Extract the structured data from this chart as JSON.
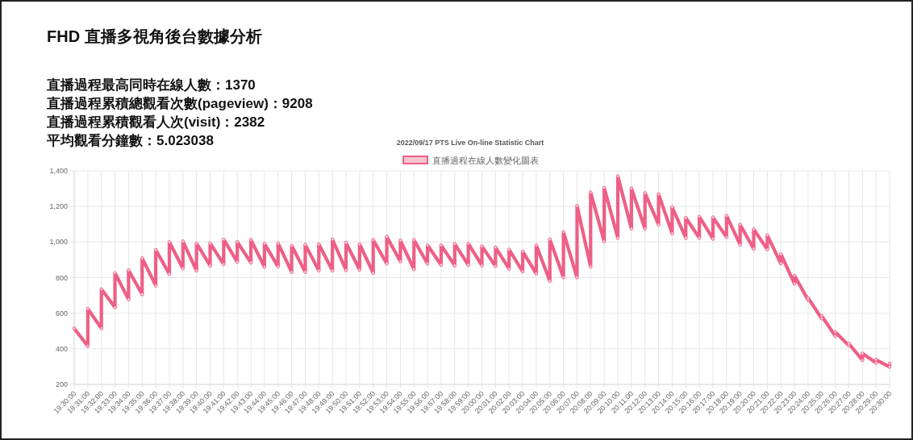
{
  "chart_data": {
    "type": "line",
    "title": "FHD 直播多視角後台數據分析",
    "subtitle": "2022/09/17 PTS Live On-line Statistic Chart",
    "annotations": [
      "直播過程最高同時在線人數：1370",
      "直播過程累積總觀看次數(pageview)：9208",
      "直播過程累積觀看人次(visit)：2382",
      "平均觀看分鐘數：5.023038"
    ],
    "legend": "top",
    "grid": true,
    "marker": "circle",
    "line_style": "solid",
    "xlim": [
      "2022-09-17T19:30",
      "2022-09-17T20:30"
    ],
    "xticks": [
      {
        "value": "2022-09-17T19:30",
        "label": "19:30:00"
      },
      {
        "value": "2022-09-17T19:31",
        "label": "19:31:00"
      },
      {
        "value": "2022-09-17T19:32",
        "label": "19:32:00"
      },
      {
        "value": "2022-09-17T19:33",
        "label": "19:33:00"
      },
      {
        "value": "2022-09-17T19:34",
        "label": "19:34:00"
      },
      {
        "value": "2022-09-17T19:35",
        "label": "19:35:00"
      },
      {
        "value": "2022-09-17T19:36",
        "label": "19:36:00"
      },
      {
        "value": "2022-09-17T19:37",
        "label": "19:37:00"
      },
      {
        "value": "2022-09-17T19:38",
        "label": "19:38:00"
      },
      {
        "value": "2022-09-17T19:39",
        "label": "19:39:00"
      },
      {
        "value": "2022-09-17T19:40",
        "label": "19:40:00"
      },
      {
        "value": "2022-09-17T19:41",
        "label": "19:41:00"
      },
      {
        "value": "2022-09-17T19:42",
        "label": "19:42:00"
      },
      {
        "value": "2022-09-17T19:43",
        "label": "19:43:00"
      },
      {
        "value": "2022-09-17T19:44",
        "label": "19:44:00"
      },
      {
        "value": "2022-09-17T19:45",
        "label": "19:45:00"
      },
      {
        "value": "2022-09-17T19:46",
        "label": "19:46:00"
      },
      {
        "value": "2022-09-17T19:47",
        "label": "19:47:00"
      },
      {
        "value": "2022-09-17T19:48",
        "label": "19:48:00"
      },
      {
        "value": "2022-09-17T19:49",
        "label": "19:49:00"
      },
      {
        "value": "2022-09-17T19:50",
        "label": "19:50:00"
      },
      {
        "value": "2022-09-17T19:51",
        "label": "19:51:00"
      },
      {
        "value": "2022-09-17T19:52",
        "label": "19:52:00"
      },
      {
        "value": "2022-09-17T19:53",
        "label": "19:53:00"
      },
      {
        "value": "2022-09-17T19:54",
        "label": "19:54:00"
      },
      {
        "value": "2022-09-17T19:55",
        "label": "19:55:00"
      },
      {
        "value": "2022-09-17T19:56",
        "label": "19:56:00"
      },
      {
        "value": "2022-09-17T19:57",
        "label": "19:57:00"
      },
      {
        "value": "2022-09-17T19:58",
        "label": "19:58:00"
      },
      {
        "value": "2022-09-17T19:59",
        "label": "19:59:00"
      },
      {
        "value": "2022-09-17T20:00",
        "label": "20:00:00"
      },
      {
        "value": "2022-09-17T20:01",
        "label": "20:01:00"
      },
      {
        "value": "2022-09-17T20:02",
        "label": "20:02:00"
      },
      {
        "value": "2022-09-17T20:03",
        "label": "20:03:00"
      },
      {
        "value": "2022-09-17T20:04",
        "label": "20:04:00"
      },
      {
        "value": "2022-09-17T20:05",
        "label": "20:05:00"
      },
      {
        "value": "2022-09-17T20:06",
        "label": "20:06:00"
      },
      {
        "value": "2022-09-17T20:07",
        "label": "20:07:00"
      },
      {
        "value": "2022-09-17T20:08",
        "label": "20:08:00"
      },
      {
        "value": "2022-09-17T20:09",
        "label": "20:09:00"
      },
      {
        "value": "2022-09-17T20:10",
        "label": "20:10:00"
      },
      {
        "value": "2022-09-17T20:11",
        "label": "20:11:00"
      },
      {
        "value": "2022-09-17T20:12",
        "label": "20:12:00"
      },
      {
        "value": "2022-09-17T20:13",
        "label": "20:13:00"
      },
      {
        "value": "2022-09-17T20:14",
        "label": "20:14:00"
      },
      {
        "value": "2022-09-17T20:15",
        "label": "20:15:00"
      },
      {
        "value": "2022-09-17T20:16",
        "label": "20:16:00"
      },
      {
        "value": "2022-09-17T20:17",
        "label": "20:17:00"
      },
      {
        "value": "2022-09-17T20:18",
        "label": "20:18:00"
      },
      {
        "value": "2022-09-17T20:19",
        "label": "20:19:00"
      },
      {
        "value": "2022-09-17T20:20",
        "label": "20:20:00"
      },
      {
        "value": "2022-09-17T20:21",
        "label": "20:21:00"
      },
      {
        "value": "2022-09-17T20:22",
        "label": "20:22:00"
      },
      {
        "value": "2022-09-17T20:23",
        "label": "20:23:00"
      },
      {
        "value": "2022-09-17T20:24",
        "label": "20:24:00"
      },
      {
        "value": "2022-09-17T20:25",
        "label": "20:25:00"
      },
      {
        "value": "2022-09-17T20:26",
        "label": "20:26:00"
      },
      {
        "value": "2022-09-17T20:27",
        "label": "20:27:00"
      },
      {
        "value": "2022-09-17T20:28",
        "label": "20:28:00"
      },
      {
        "value": "2022-09-17T20:29",
        "label": "20:29:00"
      },
      {
        "value": "2022-09-17T20:30",
        "label": "20:30:00"
      }
    ],
    "ylim": [
      200,
      1400
    ],
    "yticks": [
      {
        "value": 200,
        "label": "200"
      },
      {
        "value": 400,
        "label": "400"
      },
      {
        "value": 600,
        "label": "600"
      },
      {
        "value": 800,
        "label": "800"
      },
      {
        "value": 1000,
        "label": "1,000"
      },
      {
        "value": 1200,
        "label": "1,200"
      },
      {
        "value": 1400,
        "label": "1,400"
      }
    ],
    "series": [
      {
        "name": "直播過程在線人數變化圖表",
        "color": "#ee5f86",
        "x": [
          "2022-09-17T19:30",
          "2022-09-17T19:31",
          "2022-09-17T19:31",
          "2022-09-17T19:32",
          "2022-09-17T19:32",
          "2022-09-17T19:33",
          "2022-09-17T19:33",
          "2022-09-17T19:34",
          "2022-09-17T19:34",
          "2022-09-17T19:35",
          "2022-09-17T19:35",
          "2022-09-17T19:36",
          "2022-09-17T19:36",
          "2022-09-17T19:37",
          "2022-09-17T19:37",
          "2022-09-17T19:38",
          "2022-09-17T19:38",
          "2022-09-17T19:39",
          "2022-09-17T19:39",
          "2022-09-17T19:40",
          "2022-09-17T19:40",
          "2022-09-17T19:41",
          "2022-09-17T19:41",
          "2022-09-17T19:42",
          "2022-09-17T19:42",
          "2022-09-17T19:43",
          "2022-09-17T19:43",
          "2022-09-17T19:44",
          "2022-09-17T19:44",
          "2022-09-17T19:45",
          "2022-09-17T19:45",
          "2022-09-17T19:46",
          "2022-09-17T19:46",
          "2022-09-17T19:47",
          "2022-09-17T19:47",
          "2022-09-17T19:48",
          "2022-09-17T19:48",
          "2022-09-17T19:49",
          "2022-09-17T19:49",
          "2022-09-17T19:50",
          "2022-09-17T19:50",
          "2022-09-17T19:51",
          "2022-09-17T19:51",
          "2022-09-17T19:52",
          "2022-09-17T19:52",
          "2022-09-17T19:53",
          "2022-09-17T19:53",
          "2022-09-17T19:54",
          "2022-09-17T19:54",
          "2022-09-17T19:55",
          "2022-09-17T19:55",
          "2022-09-17T19:56",
          "2022-09-17T19:56",
          "2022-09-17T19:57",
          "2022-09-17T19:57",
          "2022-09-17T19:58",
          "2022-09-17T19:58",
          "2022-09-17T19:59",
          "2022-09-17T19:59",
          "2022-09-17T20:00",
          "2022-09-17T20:00",
          "2022-09-17T20:01",
          "2022-09-17T20:01",
          "2022-09-17T20:02",
          "2022-09-17T20:02",
          "2022-09-17T20:03",
          "2022-09-17T20:03",
          "2022-09-17T20:04",
          "2022-09-17T20:04",
          "2022-09-17T20:05",
          "2022-09-17T20:05",
          "2022-09-17T20:06",
          "2022-09-17T20:06",
          "2022-09-17T20:07",
          "2022-09-17T20:07",
          "2022-09-17T20:08",
          "2022-09-17T20:08",
          "2022-09-17T20:09",
          "2022-09-17T20:09",
          "2022-09-17T20:10",
          "2022-09-17T20:10",
          "2022-09-17T20:11",
          "2022-09-17T20:11",
          "2022-09-17T20:12",
          "2022-09-17T20:12",
          "2022-09-17T20:13",
          "2022-09-17T20:13",
          "2022-09-17T20:14",
          "2022-09-17T20:14",
          "2022-09-17T20:15",
          "2022-09-17T20:15",
          "2022-09-17T20:16",
          "2022-09-17T20:16",
          "2022-09-17T20:17",
          "2022-09-17T20:17",
          "2022-09-17T20:18",
          "2022-09-17T20:18",
          "2022-09-17T20:19",
          "2022-09-17T20:19",
          "2022-09-17T20:20",
          "2022-09-17T20:20",
          "2022-09-17T20:21",
          "2022-09-17T20:21",
          "2022-09-17T20:22",
          "2022-09-17T20:22",
          "2022-09-17T20:23",
          "2022-09-17T20:23",
          "2022-09-17T20:24",
          "2022-09-17T20:24",
          "2022-09-17T20:25",
          "2022-09-17T20:25",
          "2022-09-17T20:26",
          "2022-09-17T20:26",
          "2022-09-17T20:27",
          "2022-09-17T20:27",
          "2022-09-17T20:28",
          "2022-09-17T20:28",
          "2022-09-17T20:29",
          "2022-09-17T20:29",
          "2022-09-17T20:30",
          "2022-09-17T20:30"
        ],
        "values": [
          515,
          415,
          625,
          515,
          735,
          632,
          826,
          677,
          842,
          706,
          909,
          755,
          956,
          820,
          1000,
          851,
          1004,
          839,
          993,
          867,
          993,
          875,
          1015,
          888,
          1001,
          884,
          1012,
          860,
          991,
          862,
          993,
          831,
          980,
          831,
          985,
          839,
          988,
          839,
          1015,
          842,
          996,
          844,
          988,
          826,
          1012,
          878,
          1030,
          891,
          1009,
          847,
          1012,
          878,
          982,
          871,
          982,
          868,
          990,
          871,
          991,
          868,
          977,
          864,
          970,
          849,
          958,
          834,
          947,
          822,
          982,
          781,
          1015,
          801,
          1056,
          801,
          1204,
          861,
          1279,
          1003,
          1305,
          1023,
          1370,
          1075,
          1302,
          1075,
          1275,
          1098,
          1269,
          1048,
          1196,
          1023,
          1136,
          1023,
          1143,
          1018,
          1139,
          1027,
          1148,
          985,
          1098,
          962,
          1072,
          958,
          1038,
          879,
          932,
          766,
          811,
          675,
          686,
          570,
          585,
          472,
          494,
          419,
          429,
          336,
          374,
          321,
          339,
          298,
          318
        ]
      }
    ]
  }
}
